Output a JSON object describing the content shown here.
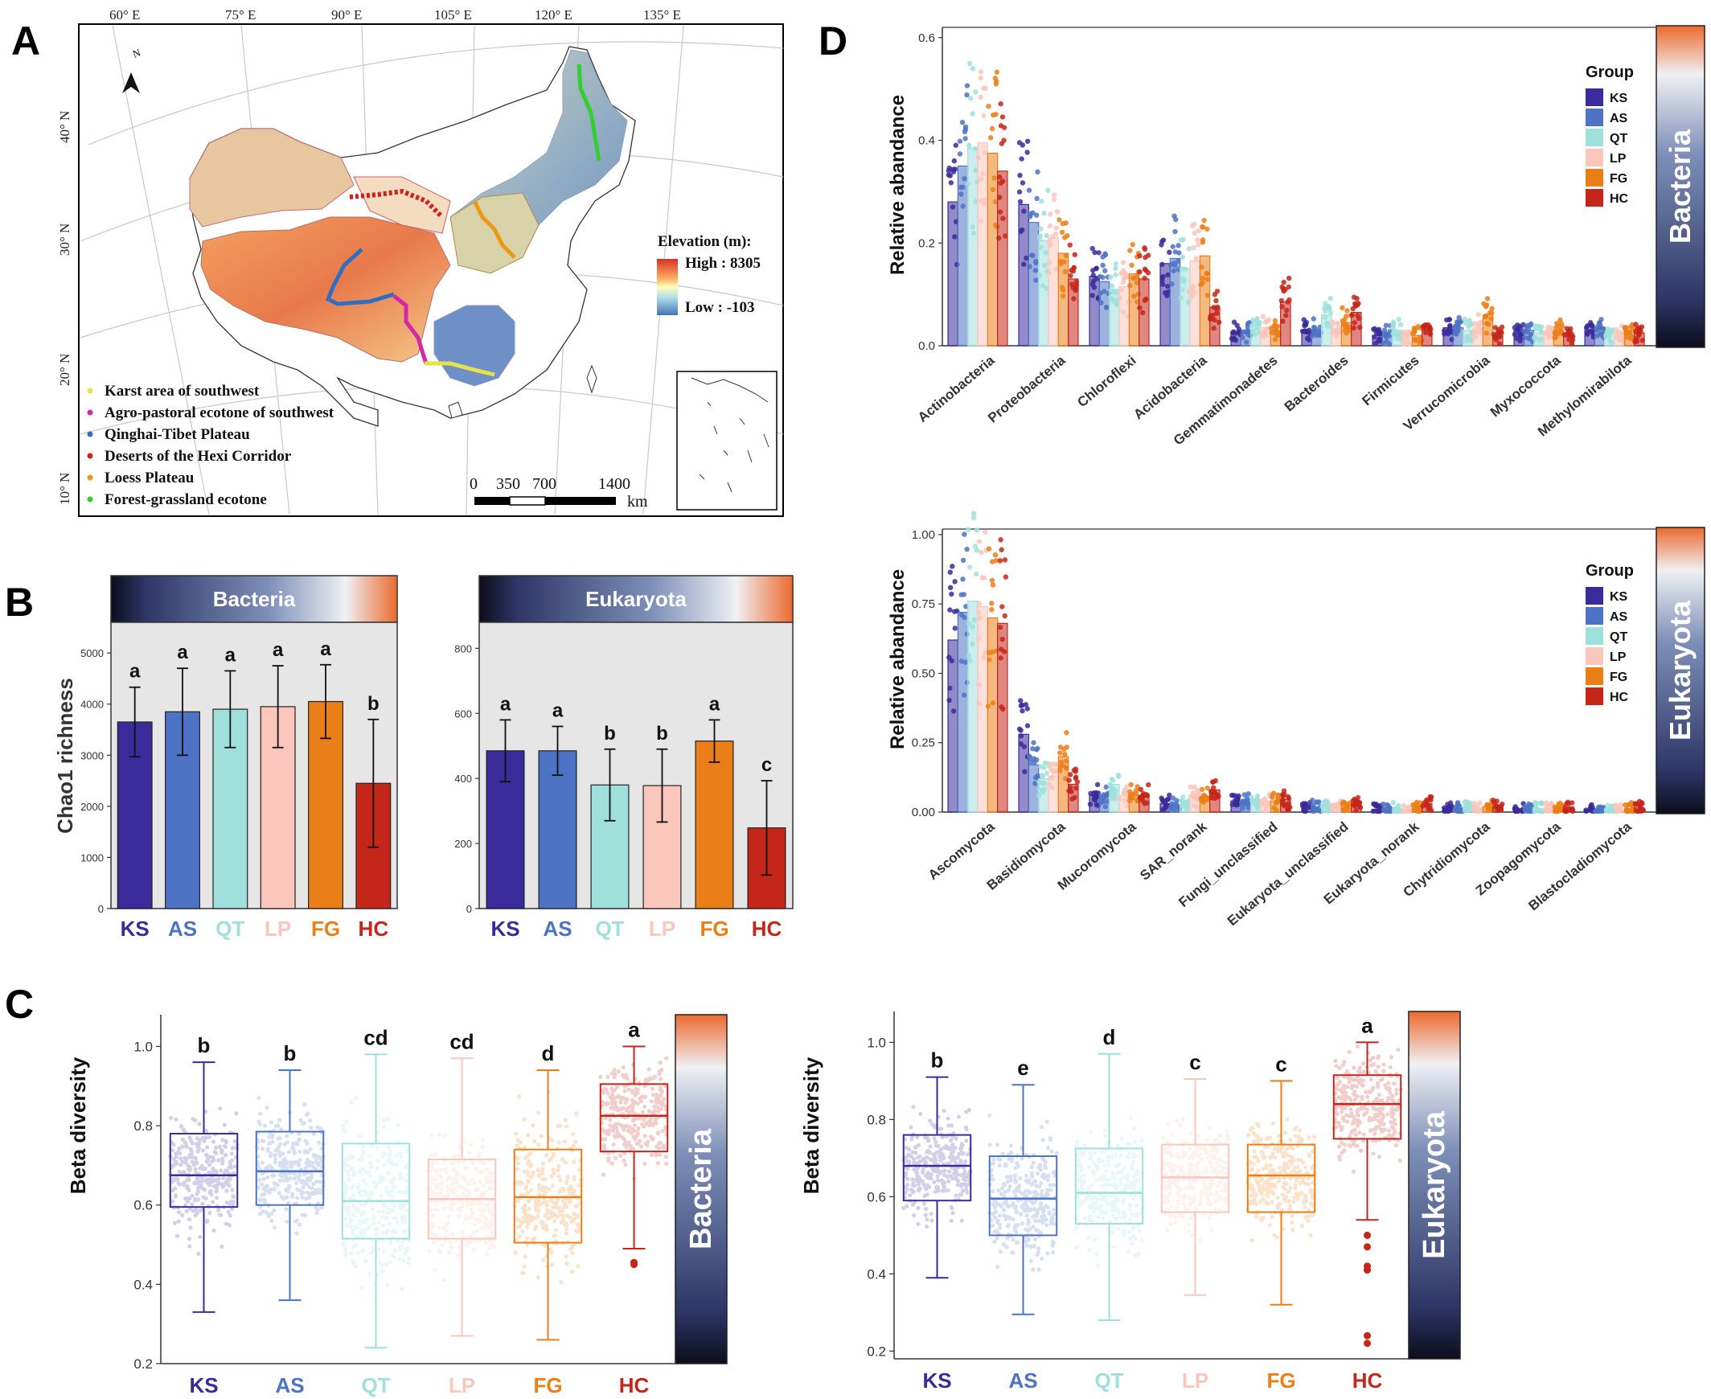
{
  "groups": [
    "KS",
    "AS",
    "QT",
    "LP",
    "FG",
    "HC"
  ],
  "group_colors": [
    "#3a2a9a",
    "#4d73c4",
    "#9fe0dd",
    "#fbc6bb",
    "#ea7f17",
    "#c4261a"
  ],
  "panels": {
    "A": {
      "label": "A",
      "longitude_labels": [
        "60° E",
        "75° E",
        "90° E",
        "105° E",
        "120° E",
        "135° E"
      ],
      "latitude_labels": [
        "40° N",
        "30° N",
        "20° N",
        "10° N"
      ],
      "north_arrow": "N",
      "legend_items": [
        {
          "label": "Karst area of southwest",
          "color": "#e6e24a"
        },
        {
          "label": "Agro-pastoral ecotone of southwest",
          "color": "#d02aa8"
        },
        {
          "label": "Qinghai-Tibet Plateau",
          "color": "#2e6fc4"
        },
        {
          "label": "Deserts of the Hexi Corridor",
          "color": "#d0201c"
        },
        {
          "label": "Loess Plateau",
          "color": "#ea9a17"
        },
        {
          "label": "Forest-grassland ecotone",
          "color": "#2fd02f"
        }
      ],
      "elevation_title": "Elevation (m):",
      "elevation_high": "High : 8305",
      "elevation_low": "Low : -103",
      "scale_ticks": [
        "0",
        "350",
        "700",
        "1400"
      ],
      "scale_unit": "km"
    },
    "B": {
      "label": "B",
      "ylabel": "Chao1 richness",
      "chart_data": [
        {
          "type": "bar",
          "strip": "Bacteria",
          "categories": [
            "KS",
            "AS",
            "QT",
            "LP",
            "FG",
            "HC"
          ],
          "values": [
            3650,
            3850,
            3900,
            3950,
            4050,
            2450
          ],
          "errors": [
            680,
            850,
            750,
            800,
            720,
            1250
          ],
          "letters": [
            "a",
            "a",
            "a",
            "a",
            "a",
            "b"
          ],
          "ylim": [
            0,
            5600
          ],
          "yticks": [
            0,
            1000,
            2000,
            3000,
            4000,
            5000
          ],
          "ytick_labels": [
            "0",
            "1000",
            "2000",
            "3000",
            "4000",
            "5000"
          ]
        },
        {
          "type": "bar",
          "strip": "Eukaryota",
          "categories": [
            "KS",
            "AS",
            "QT",
            "LP",
            "FG",
            "HC"
          ],
          "values": [
            485,
            485,
            380,
            378,
            515,
            248
          ],
          "errors": [
            95,
            75,
            110,
            112,
            65,
            145
          ],
          "letters": [
            "a",
            "a",
            "b",
            "b",
            "a",
            "c"
          ],
          "ylim": [
            0,
            880
          ],
          "yticks": [
            0,
            200,
            400,
            600,
            800
          ],
          "ytick_labels": [
            "0",
            "200",
            "400",
            "600",
            "800"
          ]
        }
      ]
    },
    "C": {
      "label": "C",
      "ylabel": "Beta diversity",
      "chart_data": [
        {
          "type": "box",
          "strip": "Bacteria",
          "categories": [
            "KS",
            "AS",
            "QT",
            "LP",
            "FG",
            "HC"
          ],
          "letters": [
            "b",
            "b",
            "cd",
            "cd",
            "d",
            "a"
          ],
          "whisker_low": [
            0.33,
            0.36,
            0.24,
            0.27,
            0.26,
            0.49
          ],
          "q1": [
            0.595,
            0.6,
            0.515,
            0.515,
            0.505,
            0.735
          ],
          "median": [
            0.675,
            0.685,
            0.61,
            0.615,
            0.62,
            0.825
          ],
          "q3": [
            0.78,
            0.785,
            0.755,
            0.715,
            0.74,
            0.905
          ],
          "whisker_high": [
            0.96,
            0.94,
            0.98,
            0.97,
            0.94,
            1.0
          ],
          "outliers": [
            [],
            [],
            [],
            [],
            [],
            [
              0.455,
              0.45
            ]
          ],
          "ylim": [
            0.2,
            1.08
          ],
          "yticks": [
            0.2,
            0.4,
            0.6,
            0.8,
            1.0
          ],
          "ytick_labels": [
            "0.2",
            "0.4",
            "0.6",
            "0.8",
            "1.0"
          ]
        },
        {
          "type": "box",
          "strip": "Eukaryota",
          "categories": [
            "KS",
            "AS",
            "QT",
            "LP",
            "FG",
            "HC"
          ],
          "letters": [
            "b",
            "e",
            "d",
            "c",
            "c",
            "a"
          ],
          "whisker_low": [
            0.39,
            0.295,
            0.28,
            0.345,
            0.32,
            0.54
          ],
          "q1": [
            0.59,
            0.5,
            0.53,
            0.56,
            0.56,
            0.75
          ],
          "median": [
            0.68,
            0.595,
            0.61,
            0.65,
            0.655,
            0.84
          ],
          "q3": [
            0.76,
            0.705,
            0.725,
            0.735,
            0.735,
            0.915
          ],
          "whisker_high": [
            0.91,
            0.89,
            0.97,
            0.905,
            0.9,
            1.0
          ],
          "outliers": [
            [],
            [],
            [],
            [],
            [],
            [
              0.5,
              0.47,
              0.42,
              0.41,
              0.24,
              0.22
            ]
          ],
          "ylim": [
            0.18,
            1.08
          ],
          "yticks": [
            0.2,
            0.4,
            0.6,
            0.8,
            1.0
          ],
          "ytick_labels": [
            "0.2",
            "0.4",
            "0.6",
            "0.8",
            "1.0"
          ]
        }
      ]
    },
    "D": {
      "label": "D",
      "ylabel": "Relative abandance",
      "legend_title": "Group",
      "chart_data": [
        {
          "type": "bar",
          "strip": "Bacteria",
          "categories": [
            "Actinobacteria",
            "Proteobacteria",
            "Chloroflexi",
            "Acidobacteria",
            "Gemmatimonadetes",
            "Bacteroides",
            "Firmicutes",
            "Verrucomicrobia",
            "Myxococcota",
            "Methylomirabilota"
          ],
          "series": [
            {
              "name": "KS",
              "values": [
                0.28,
                0.275,
                0.135,
                0.16,
                0.025,
                0.03,
                0.02,
                0.035,
                0.03,
                0.03
              ]
            },
            {
              "name": "AS",
              "values": [
                0.35,
                0.24,
                0.125,
                0.17,
                0.03,
                0.03,
                0.025,
                0.035,
                0.03,
                0.035
              ]
            },
            {
              "name": "QT",
              "values": [
                0.385,
                0.205,
                0.11,
                0.15,
                0.04,
                0.06,
                0.03,
                0.03,
                0.025,
                0.025
              ]
            },
            {
              "name": "LP",
              "values": [
                0.395,
                0.21,
                0.115,
                0.165,
                0.035,
                0.03,
                0.02,
                0.035,
                0.025,
                0.025
              ]
            },
            {
              "name": "FG",
              "values": [
                0.375,
                0.18,
                0.14,
                0.175,
                0.03,
                0.045,
                0.02,
                0.06,
                0.03,
                0.03
              ]
            },
            {
              "name": "HC",
              "values": [
                0.34,
                0.13,
                0.13,
                0.075,
                0.085,
                0.065,
                0.03,
                0.02,
                0.025,
                0.025
              ]
            }
          ],
          "ylim": [
            0,
            0.62
          ],
          "yticks": [
            0,
            0.2,
            0.4,
            0.6
          ],
          "ytick_labels": [
            "0.0",
            "0.2",
            "0.4",
            "0.6"
          ]
        },
        {
          "type": "bar",
          "strip": "Eukaryota",
          "categories": [
            "Ascomycota",
            "Basidiomycota",
            "Mucoromycota",
            "SAR_norank",
            "Fungi_unclassified",
            "Eukaryota_unclassified",
            "Eukaryota_norank",
            "Chytridiomycota",
            "Zoopagomycota",
            "Blastocladiomycota"
          ],
          "series": [
            {
              "name": "KS",
              "values": [
                0.62,
                0.28,
                0.06,
                0.03,
                0.04,
                0.02,
                0.01,
                0.015,
                0.012,
                0.008
              ]
            },
            {
              "name": "AS",
              "values": [
                0.72,
                0.17,
                0.06,
                0.025,
                0.04,
                0.02,
                0.01,
                0.015,
                0.012,
                0.008
              ]
            },
            {
              "name": "QT",
              "values": [
                0.76,
                0.12,
                0.1,
                0.03,
                0.045,
                0.02,
                0.012,
                0.02,
                0.012,
                0.01
              ]
            },
            {
              "name": "LP",
              "values": [
                0.74,
                0.13,
                0.06,
                0.06,
                0.04,
                0.02,
                0.01,
                0.015,
                0.012,
                0.01
              ]
            },
            {
              "name": "FG",
              "values": [
                0.7,
                0.2,
                0.06,
                0.05,
                0.04,
                0.025,
                0.012,
                0.02,
                0.015,
                0.012
              ]
            },
            {
              "name": "HC",
              "values": [
                0.68,
                0.1,
                0.06,
                0.08,
                0.045,
                0.03,
                0.03,
                0.018,
                0.015,
                0.015
              ]
            }
          ],
          "ylim": [
            0,
            1.02
          ],
          "yticks": [
            0,
            0.25,
            0.5,
            0.75,
            1.0
          ],
          "ytick_labels": [
            "0.00",
            "0.25",
            "0.50",
            "0.75",
            "1.00"
          ]
        }
      ]
    }
  }
}
